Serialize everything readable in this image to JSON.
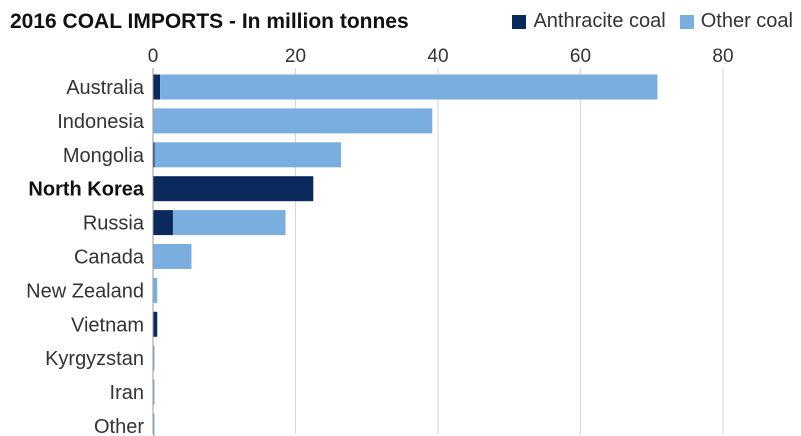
{
  "chart_data": {
    "type": "bar",
    "orientation": "horizontal",
    "stacked": true,
    "title": "2016 COAL IMPORTS - In million tonnes",
    "categories": [
      "Australia",
      "Indonesia",
      "Mongolia",
      "North Korea",
      "Russia",
      "Canada",
      "New Zealand",
      "Vietnam",
      "Kyrgyzstan",
      "Iran",
      "Other"
    ],
    "highlighted_category": "North Korea",
    "series": [
      {
        "name": "Anthracite coal",
        "color": "#0a2a5e",
        "values": [
          1.0,
          0,
          0.2,
          22.5,
          2.8,
          0,
          0,
          0.6,
          0,
          0,
          0
        ]
      },
      {
        "name": "Other coal",
        "color": "#7aaedf",
        "values": [
          69.8,
          39.2,
          26.2,
          0,
          15.8,
          5.4,
          0.6,
          0,
          0.2,
          0.2,
          0.2
        ]
      }
    ],
    "x_ticks": [
      0,
      20,
      40,
      60,
      80
    ],
    "xlim": [
      0,
      80
    ],
    "grid": "vertical",
    "legend_position": "top-right",
    "axis_position": "top"
  }
}
